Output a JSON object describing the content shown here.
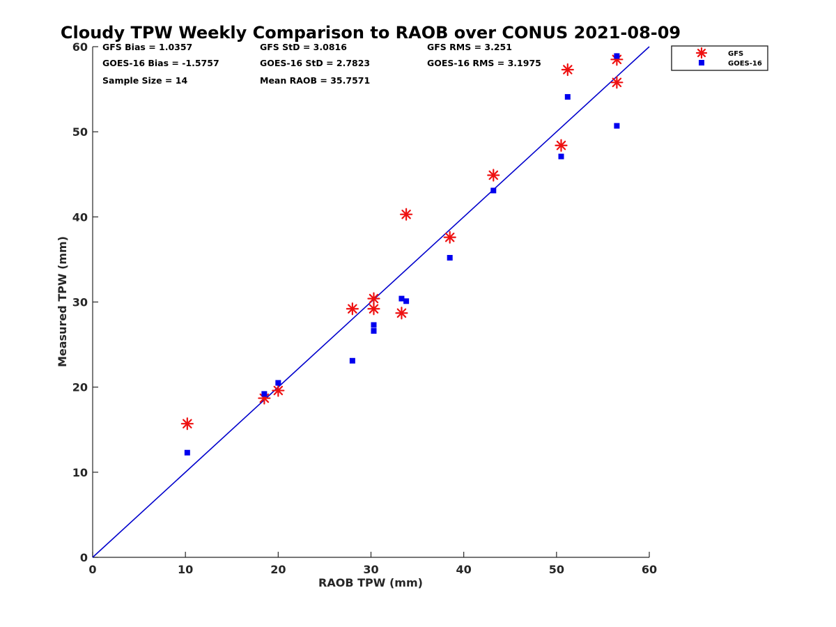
{
  "chart_data": {
    "type": "scatter",
    "title": "Cloudy TPW Weekly Comparison to RAOB over CONUS 2021-08-09",
    "xlabel": "RAOB TPW (mm)",
    "ylabel": "Measured TPW (mm)",
    "xlim": [
      0,
      60
    ],
    "ylim": [
      0,
      60
    ],
    "xticks": [
      0,
      10,
      20,
      30,
      40,
      50,
      60
    ],
    "yticks": [
      0,
      10,
      20,
      30,
      40,
      50,
      60
    ],
    "grid": false,
    "legend_position": "outside-top-right",
    "reference_line": {
      "from": [
        0,
        0
      ],
      "to": [
        60,
        60
      ],
      "color": "#0000cc"
    },
    "stats": [
      [
        "GFS Bias = 1.0357",
        "GFS StD = 3.0816",
        "GFS RMS = 3.251"
      ],
      [
        "GOES-16 Bias = -1.5757",
        "GOES-16 StD = 2.7823",
        "GOES-16 RMS = 3.1975"
      ],
      [
        "Sample Size = 14",
        "Mean RAOB = 35.7571",
        ""
      ]
    ],
    "series": [
      {
        "name": "GFS",
        "marker": "asterisk",
        "color": "#ee1111",
        "points": [
          [
            10.2,
            15.7
          ],
          [
            18.5,
            18.7
          ],
          [
            20.0,
            19.6
          ],
          [
            28.0,
            29.2
          ],
          [
            30.3,
            30.4
          ],
          [
            30.3,
            29.2
          ],
          [
            33.3,
            28.7
          ],
          [
            33.8,
            40.3
          ],
          [
            38.5,
            37.6
          ],
          [
            43.2,
            44.9
          ],
          [
            50.5,
            48.4
          ],
          [
            51.2,
            57.3
          ],
          [
            56.5,
            58.5
          ],
          [
            56.5,
            55.8
          ]
        ]
      },
      {
        "name": "GOES-16",
        "marker": "square",
        "color": "#0000ee",
        "points": [
          [
            10.2,
            12.3
          ],
          [
            18.5,
            19.2
          ],
          [
            20.0,
            20.5
          ],
          [
            28.0,
            23.1
          ],
          [
            30.3,
            27.3
          ],
          [
            30.3,
            26.6
          ],
          [
            33.3,
            30.4
          ],
          [
            33.8,
            30.1
          ],
          [
            38.5,
            35.2
          ],
          [
            43.2,
            43.1
          ],
          [
            50.5,
            47.1
          ],
          [
            51.2,
            54.1
          ],
          [
            56.5,
            58.9
          ],
          [
            56.5,
            50.7
          ]
        ]
      }
    ]
  }
}
